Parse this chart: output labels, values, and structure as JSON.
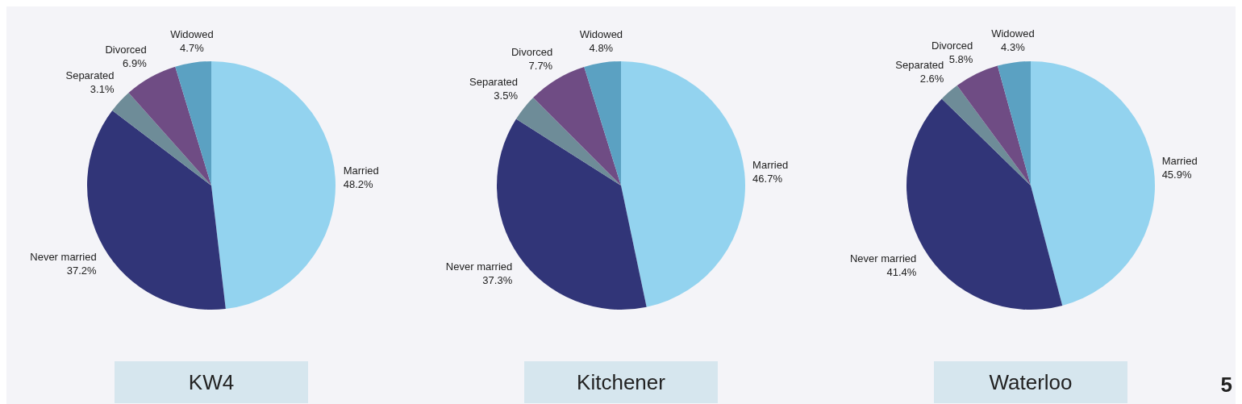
{
  "chart_data": [
    {
      "type": "pie",
      "title": "KW4",
      "categories": [
        "Married",
        "Never married",
        "Separated",
        "Divorced",
        "Widowed"
      ],
      "values": [
        48.2,
        37.2,
        3.1,
        6.9,
        4.7
      ],
      "value_labels": [
        "48.2%",
        "37.2%",
        "3.1%",
        "6.9%",
        "4.7%"
      ],
      "colors": [
        "#93d3ef",
        "#313578",
        "#6e8c98",
        "#6f4c84",
        "#5ba1c2"
      ]
    },
    {
      "type": "pie",
      "title": "Kitchener",
      "categories": [
        "Married",
        "Never married",
        "Separated",
        "Divorced",
        "Widowed"
      ],
      "values": [
        46.7,
        37.3,
        3.5,
        7.7,
        4.8
      ],
      "value_labels": [
        "46.7%",
        "37.3%",
        "3.5%",
        "7.7%",
        "4.8%"
      ],
      "colors": [
        "#93d3ef",
        "#313578",
        "#6e8c98",
        "#6f4c84",
        "#5ba1c2"
      ]
    },
    {
      "type": "pie",
      "title": "Waterloo",
      "categories": [
        "Married",
        "Never married",
        "Separated",
        "Divorced",
        "Widowed"
      ],
      "values": [
        45.9,
        41.4,
        2.6,
        5.8,
        4.3
      ],
      "value_labels": [
        "45.9%",
        "41.4%",
        "2.6%",
        "5.8%",
        "4.3%"
      ],
      "colors": [
        "#93d3ef",
        "#313578",
        "#6e8c98",
        "#6f4c84",
        "#5ba1c2"
      ],
      "annotations": [
        "5"
      ]
    }
  ]
}
